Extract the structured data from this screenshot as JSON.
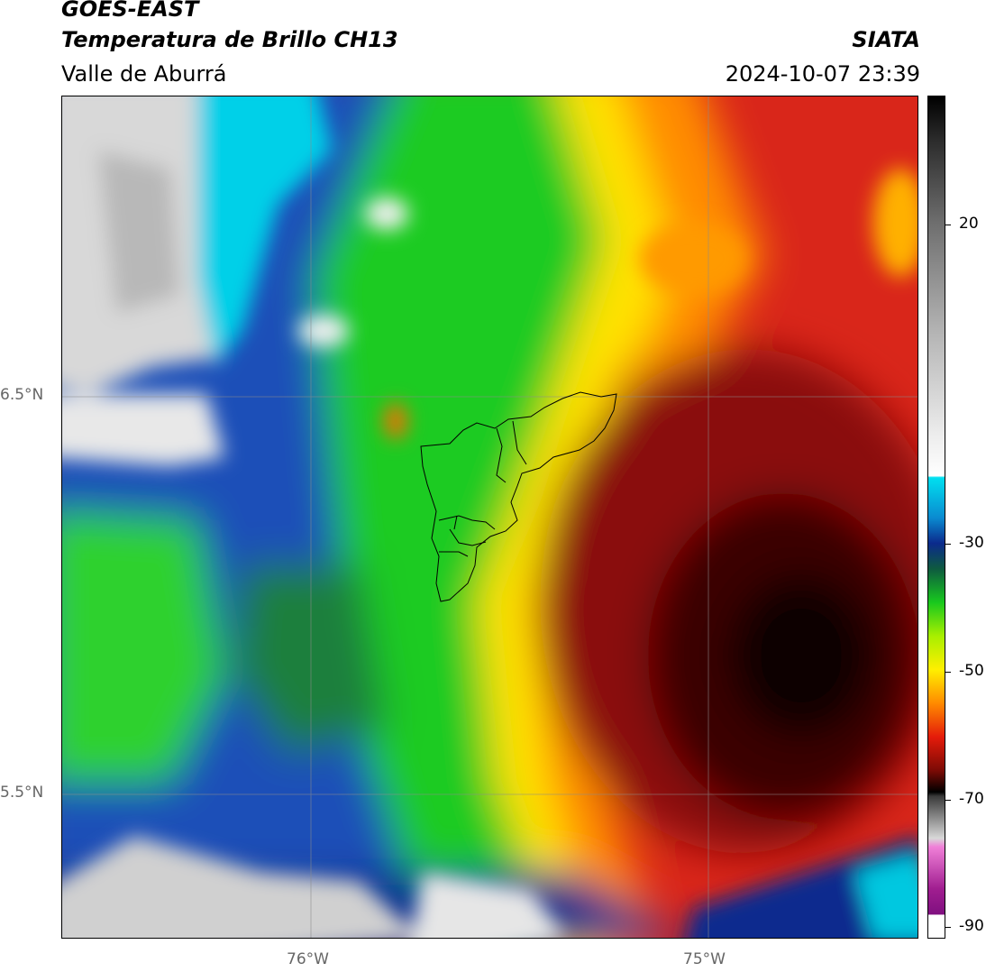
{
  "header": {
    "satellite": "GOES-EAST",
    "product": "Temperatura de Brillo CH13",
    "region": "Valle de Aburrá",
    "institution": "SIATA",
    "datetime": "2024-10-07 23:39"
  },
  "map": {
    "lat_labels": [
      "6.5°N",
      "5.5°N"
    ],
    "lon_labels": [
      "76°W",
      "75°W"
    ],
    "boundary": "Valle de Aburrá municipalities outline"
  },
  "colorbar": {
    "ticks": [
      "20",
      "-30",
      "-50",
      "-70",
      "-90"
    ],
    "colors": {
      "gray_warm": "#1a1a1a",
      "white": "#f2f2f2",
      "cyan": "#00d7ef",
      "blue": "#0b2a8c",
      "green": "#18c81e",
      "yellow": "#ffef00",
      "orange": "#ff8a00",
      "red": "#e41b0a",
      "dark_red": "#5a0705",
      "black": "#000000",
      "magenta": "#c21ea8"
    }
  }
}
